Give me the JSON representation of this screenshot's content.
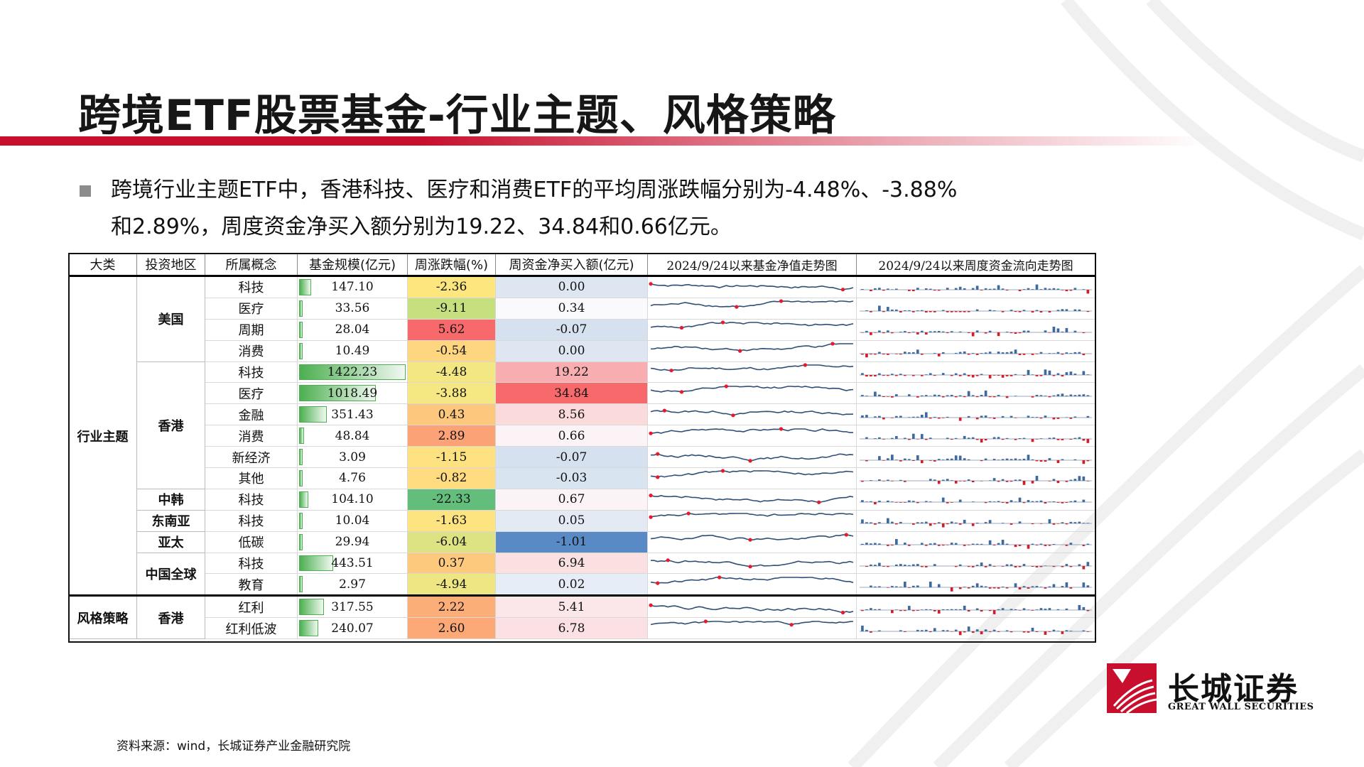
{
  "title": "跨境ETF股票基金-行业主题、风格策略",
  "bullet": {
    "line1": "跨境行业主题ETF中，香港科技、医疗和消费ETF的平均周涨跌幅分别为-4.48%、-3.88%",
    "line2": "和2.89%，周度资金净买入额分别为19.22、34.84和0.66亿元。"
  },
  "table": {
    "headers": [
      "大类",
      "投资地区",
      "所属概念",
      "基金规模(亿元)",
      "周涨跌幅(%)",
      "周资金净买入额(亿元)",
      "2024/9/24以来基金净值走势图",
      "2024/9/24以来周度资金流向走势图"
    ],
    "groups": [
      {
        "category": "行业主题",
        "regions": [
          {
            "name": "美国",
            "rows": [
              {
                "concept": "科技",
                "size": "147.10",
                "size_value": 147.1,
                "change": "-2.36",
                "change_color": "#fde67e",
                "flow": "0.00",
                "flow_color": "#dde6f1"
              },
              {
                "concept": "医疗",
                "size": "33.56",
                "size_value": 33.56,
                "change": "-9.11",
                "change_color": "#c6df7f",
                "flow": "0.34",
                "flow_color": "#fafafc"
              },
              {
                "concept": "周期",
                "size": "28.04",
                "size_value": 28.04,
                "change": "5.62",
                "change_color": "#f8696b",
                "flow": "-0.07",
                "flow_color": "#d6e1ef"
              },
              {
                "concept": "消费",
                "size": "10.49",
                "size_value": 10.49,
                "change": "-0.54",
                "change_color": "#fed680",
                "flow": "0.00",
                "flow_color": "#dde6f1"
              }
            ]
          },
          {
            "name": "香港",
            "rows": [
              {
                "concept": "科技",
                "size": "1422.23",
                "size_value": 1422.23,
                "change": "-4.48",
                "change_color": "#f2e783",
                "flow": "19.22",
                "flow_color": "#f8aeb0"
              },
              {
                "concept": "医疗",
                "size": "1018.49",
                "size_value": 1018.49,
                "change": "-3.88",
                "change_color": "#f5e882",
                "flow": "34.84",
                "flow_color": "#f8696b"
              },
              {
                "concept": "金融",
                "size": "351.43",
                "size_value": 351.43,
                "change": "0.43",
                "change_color": "#fdc87d",
                "flow": "8.56",
                "flow_color": "#fbdadb"
              },
              {
                "concept": "消费",
                "size": "48.84",
                "size_value": 48.84,
                "change": "2.89",
                "change_color": "#fba276",
                "flow": "0.66",
                "flow_color": "#fbf3f5"
              },
              {
                "concept": "新经济",
                "size": "3.09",
                "size_value": 3.09,
                "change": "-1.15",
                "change_color": "#fee180",
                "flow": "-0.07",
                "flow_color": "#d6e1ef"
              },
              {
                "concept": "其他",
                "size": "4.76",
                "size_value": 4.76,
                "change": "-0.82",
                "change_color": "#fedc7f",
                "flow": "-0.03",
                "flow_color": "#d9e4f1"
              }
            ]
          },
          {
            "name": "中韩",
            "rows": [
              {
                "concept": "科技",
                "size": "104.10",
                "size_value": 104.1,
                "change": "-22.33",
                "change_color": "#63be7b",
                "flow": "0.67",
                "flow_color": "#fbf3f5"
              }
            ]
          },
          {
            "name": "东南亚",
            "rows": [
              {
                "concept": "科技",
                "size": "10.04",
                "size_value": 10.04,
                "change": "-1.63",
                "change_color": "#fee381",
                "flow": "0.05",
                "flow_color": "#e3eaf4"
              }
            ]
          },
          {
            "name": "亚太",
            "rows": [
              {
                "concept": "低碳",
                "size": "29.94",
                "size_value": 29.94,
                "change": "-6.04",
                "change_color": "#dde382",
                "flow": "-1.01",
                "flow_color": "#5a8ac6"
              }
            ]
          },
          {
            "name": "中国全球",
            "rows": [
              {
                "concept": "科技",
                "size": "443.51",
                "size_value": 443.51,
                "change": "0.37",
                "change_color": "#fdca7d",
                "flow": "6.94",
                "flow_color": "#fbe0e2"
              },
              {
                "concept": "教育",
                "size": "2.97",
                "size_value": 2.97,
                "change": "-4.94",
                "change_color": "#eee683",
                "flow": "0.02",
                "flow_color": "#e7edf6"
              }
            ]
          }
        ]
      },
      {
        "category": "风格策略",
        "regions": [
          {
            "name": "香港",
            "rows": [
              {
                "concept": "红利",
                "size": "317.55",
                "size_value": 317.55,
                "change": "2.22",
                "change_color": "#fcae78",
                "flow": "5.41",
                "flow_color": "#fbe7e9"
              },
              {
                "concept": "红利低波",
                "size": "240.07",
                "size_value": 240.07,
                "change": "2.60",
                "change_color": "#fca877",
                "flow": "6.78",
                "flow_color": "#fbe1e3"
              }
            ]
          }
        ]
      }
    ],
    "size_max": 1422.23,
    "sparkline_line_color": "#2f4e78",
    "sparkline_marker_color": "#e8182d",
    "flow_bar_pos_color": "#3f6a9e",
    "flow_bar_neg_color": "#d11d27"
  },
  "logo": {
    "name_cn": "长城证券",
    "name_en": "GREAT WALL SECURITIES",
    "color": "#c8102e"
  },
  "source": "资料来源：wind，长城证券产业金融研究院"
}
